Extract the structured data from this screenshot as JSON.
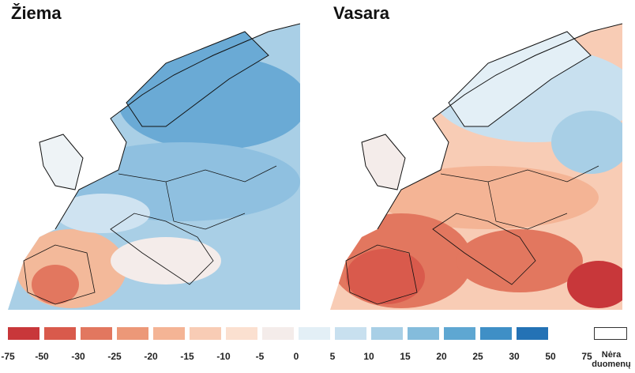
{
  "panels": [
    {
      "id": "winter",
      "title": "Žiema",
      "tone": "cool"
    },
    {
      "id": "summer",
      "title": "Vasara",
      "tone": "warm"
    }
  ],
  "legend": {
    "labels": [
      "-75",
      "-50",
      "-30",
      "-25",
      "-20",
      "-15",
      "-10",
      "-5",
      "0",
      "5",
      "10",
      "15",
      "20",
      "25",
      "30",
      "50",
      "75"
    ],
    "colors": [
      "#c8373a",
      "#d95a4c",
      "#e2775f",
      "#ec9878",
      "#f4b495",
      "#f8ccb5",
      "#fbe0d0",
      "#f4ecea",
      "#e3eff6",
      "#c8e0ef",
      "#a8cfe6",
      "#84bcdc",
      "#5ea7d2",
      "#3f8fc6",
      "#2472b5"
    ],
    "no_data_label": "Nėra duomenų",
    "no_data_color": "#ffffff"
  }
}
